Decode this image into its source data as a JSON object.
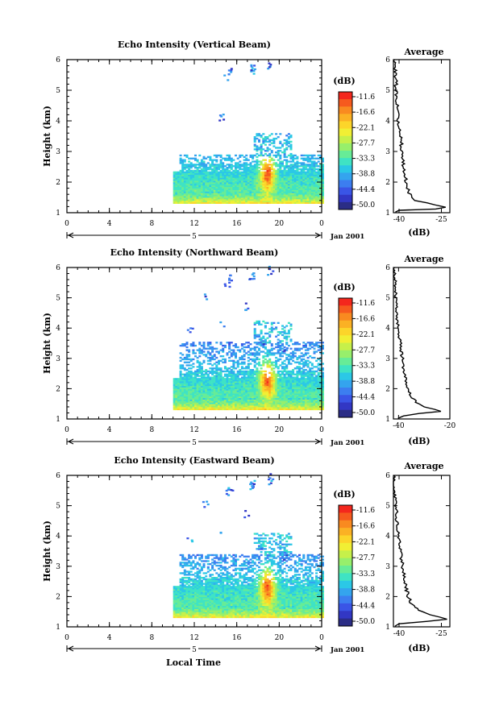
{
  "chart_data": {
    "type": "heatmap",
    "xlabel": "Local Time",
    "date_label": "Jan 2001",
    "day_label": "5",
    "x_ticks": [
      "0",
      "4",
      "8",
      "12",
      "16",
      "20",
      "0"
    ],
    "xlim": [
      0,
      24
    ],
    "ylabel": "Height (km)",
    "ylim": [
      1,
      6
    ],
    "y_ticks": [
      "1",
      "2",
      "3",
      "4",
      "5",
      "6"
    ],
    "colorbar": {
      "label": "(dB)",
      "ticks": [
        "-11.6",
        "-16.6",
        "-22.1",
        "-27.7",
        "-33.3",
        "-38.8",
        "-44.4",
        "-50.0"
      ],
      "colors": [
        "#f4271d",
        "#f65a1e",
        "#f98a20",
        "#fbb124",
        "#fcd52a",
        "#f1ef34",
        "#c6f04a",
        "#97ef6b",
        "#67ec97",
        "#3fe3c4",
        "#2bc8e6",
        "#34a4ee",
        "#3c7ef0",
        "#3a55e6",
        "#3237c4",
        "#2b2d86"
      ]
    },
    "average_panel": {
      "title": "Average",
      "xlabel": "(dB)"
    },
    "panels": [
      {
        "title": "Echo Intensity (Vertical Beam)",
        "avg_ticks": [
          "-40",
          "-25"
        ],
        "avg_xlim": [
          -42,
          -22
        ],
        "avg_profile": [
          [
            1.02,
            -41.3
          ],
          [
            1.08,
            -40.0
          ],
          [
            1.12,
            -27.0
          ],
          [
            1.18,
            -23.5
          ],
          [
            1.25,
            -27.0
          ],
          [
            1.32,
            -30.0
          ],
          [
            1.4,
            -34.5
          ],
          [
            1.55,
            -36.0
          ],
          [
            1.75,
            -36.8
          ],
          [
            2.0,
            -37.5
          ],
          [
            2.3,
            -38.0
          ],
          [
            2.6,
            -38.5
          ],
          [
            2.9,
            -38.8
          ],
          [
            3.2,
            -39.2
          ],
          [
            3.5,
            -39.5
          ],
          [
            3.8,
            -40.0
          ],
          [
            4.1,
            -40.4
          ],
          [
            4.4,
            -40.7
          ],
          [
            4.7,
            -40.9
          ],
          [
            5.0,
            -41.2
          ],
          [
            5.3,
            -41.0
          ],
          [
            5.6,
            -41.4
          ],
          [
            5.9,
            -41.6
          ],
          [
            6.0,
            -41.6
          ]
        ]
      },
      {
        "title": "Echo Intensity (Northward Beam)",
        "avg_ticks": [
          "-40",
          "-20"
        ],
        "avg_xlim": [
          -42,
          -20
        ],
        "avg_profile": [
          [
            1.02,
            -40.2
          ],
          [
            1.1,
            -38.0
          ],
          [
            1.18,
            -32.0
          ],
          [
            1.25,
            -23.5
          ],
          [
            1.32,
            -26.0
          ],
          [
            1.4,
            -30.0
          ],
          [
            1.55,
            -33.0
          ],
          [
            1.75,
            -35.0
          ],
          [
            2.0,
            -36.4
          ],
          [
            2.3,
            -37.2
          ],
          [
            2.6,
            -37.8
          ],
          [
            2.9,
            -38.4
          ],
          [
            3.2,
            -38.8
          ],
          [
            3.5,
            -39.3
          ],
          [
            3.8,
            -39.8
          ],
          [
            4.1,
            -40.2
          ],
          [
            4.4,
            -40.6
          ],
          [
            4.7,
            -40.8
          ],
          [
            5.0,
            -41.1
          ],
          [
            5.3,
            -41.3
          ],
          [
            5.6,
            -41.4
          ],
          [
            5.9,
            -41.6
          ],
          [
            6.0,
            -41.6
          ]
        ]
      },
      {
        "title": "Echo Intensity (Eastward Beam)",
        "avg_ticks": [
          "-40",
          "-25"
        ],
        "avg_xlim": [
          -42,
          -22
        ],
        "avg_profile": [
          [
            1.02,
            -41.5
          ],
          [
            1.1,
            -40.0
          ],
          [
            1.18,
            -30.0
          ],
          [
            1.25,
            -23.0
          ],
          [
            1.32,
            -25.5
          ],
          [
            1.4,
            -29.0
          ],
          [
            1.55,
            -33.0
          ],
          [
            1.75,
            -35.5
          ],
          [
            2.0,
            -36.8
          ],
          [
            2.3,
            -37.5
          ],
          [
            2.6,
            -38.0
          ],
          [
            2.9,
            -38.6
          ],
          [
            3.2,
            -39.0
          ],
          [
            3.5,
            -39.5
          ],
          [
            3.8,
            -40.0
          ],
          [
            4.1,
            -40.4
          ],
          [
            4.4,
            -40.7
          ],
          [
            4.7,
            -40.9
          ],
          [
            5.0,
            -41.2
          ],
          [
            5.3,
            -41.4
          ],
          [
            5.6,
            -41.6
          ],
          [
            5.9,
            -41.8
          ],
          [
            6.0,
            -41.8
          ]
        ]
      }
    ]
  }
}
